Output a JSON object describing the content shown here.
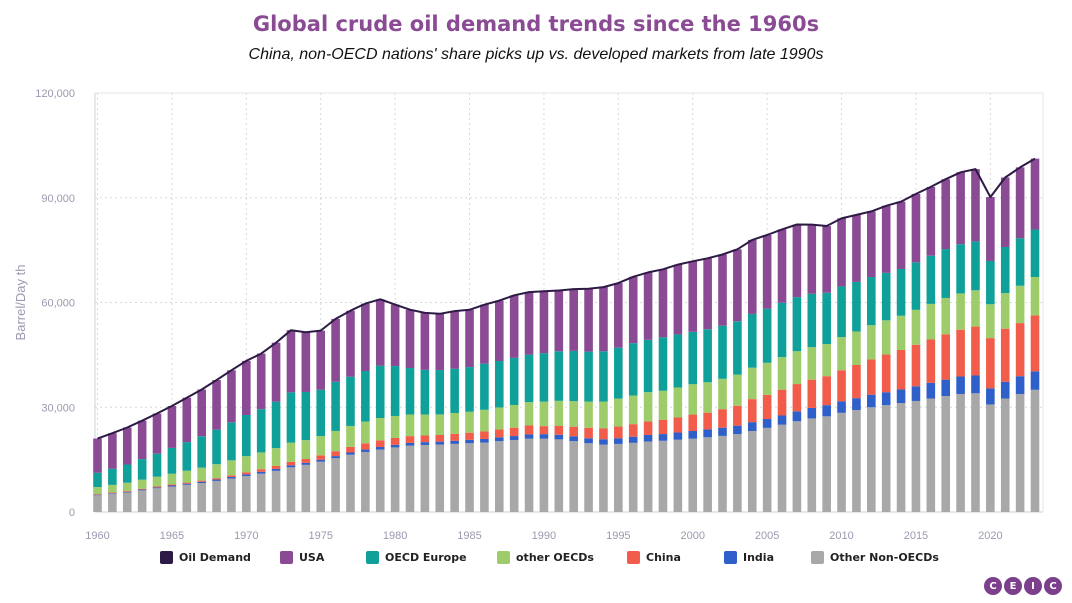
{
  "colors": {
    "oil_demand": "#2d1b45",
    "usa": "#8a4a94",
    "oecd_europe": "#10a09a",
    "other_oecds": "#9fcc6a",
    "china": "#f25c4b",
    "india": "#2f5fc9",
    "other_non_oecds": "#a8a8a8",
    "grid": "#d8d8d8",
    "axis_text": "#9a9ab0"
  },
  "logo": {
    "letters": [
      "C",
      "E",
      "I",
      "C"
    ],
    "color": "#7b3f8c"
  },
  "chart_data": {
    "type": "bar",
    "stacked": true,
    "title": "Global crude oil demand trends since the 1960s",
    "subtitle": "China, non-OECD nations' share picks up vs. developed markets from late 1990s",
    "ylabel": "Barrel/Day th",
    "ylim": [
      0,
      120000
    ],
    "y_ticks": [
      "0",
      "30,000",
      "60,000",
      "90,000",
      "120,000"
    ],
    "x_ticks": [
      "1960",
      "1965",
      "1970",
      "1975",
      "1980",
      "1985",
      "1990",
      "1995",
      "2000",
      "2005",
      "2010",
      "2015",
      "2020"
    ],
    "grid": true,
    "legend_position": "bottom",
    "x": [
      1960,
      1961,
      1962,
      1963,
      1964,
      1965,
      1966,
      1967,
      1968,
      1969,
      1970,
      1971,
      1972,
      1973,
      1974,
      1975,
      1976,
      1977,
      1978,
      1979,
      1980,
      1981,
      1982,
      1983,
      1984,
      1985,
      1986,
      1987,
      1988,
      1989,
      1990,
      1991,
      1992,
      1993,
      1994,
      1995,
      1996,
      1997,
      1998,
      1999,
      2000,
      2001,
      2002,
      2003,
      2004,
      2005,
      2006,
      2007,
      2008,
      2009,
      2010,
      2011,
      2012,
      2013,
      2014,
      2015,
      2016,
      2017,
      2018,
      2019,
      2020,
      2021,
      2022,
      2023
    ],
    "series": [
      {
        "name": "Other Non-OECDs",
        "values": [
          4800,
          5200,
          5600,
          6200,
          6800,
          7300,
          7800,
          8300,
          8900,
          9600,
          10300,
          11000,
          11800,
          12800,
          13500,
          14400,
          15400,
          16400,
          17200,
          17900,
          18500,
          19000,
          19200,
          19300,
          19500,
          19700,
          19900,
          20300,
          20600,
          21000,
          21000,
          20800,
          20300,
          19700,
          19300,
          19500,
          19800,
          20200,
          20400,
          20700,
          21000,
          21400,
          21800,
          22300,
          23200,
          24100,
          25000,
          26000,
          26800,
          27400,
          28400,
          29200,
          30000,
          30600,
          31200,
          31800,
          32500,
          33200,
          33800,
          34000,
          30800,
          32500,
          33800,
          35000
        ]
      },
      {
        "name": "India",
        "values": [
          160,
          180,
          200,
          230,
          260,
          290,
          320,
          360,
          400,
          440,
          480,
          510,
          540,
          570,
          580,
          590,
          610,
          640,
          680,
          720,
          750,
          780,
          810,
          850,
          900,
          960,
          1020,
          1090,
          1150,
          1220,
          1300,
          1330,
          1390,
          1430,
          1520,
          1620,
          1760,
          1860,
          1920,
          2060,
          2200,
          2250,
          2350,
          2430,
          2530,
          2530,
          2640,
          2840,
          3000,
          3200,
          3300,
          3400,
          3600,
          3700,
          3900,
          4200,
          4500,
          4700,
          5000,
          5100,
          4600,
          4800,
          5100,
          5300
        ]
      },
      {
        "name": "China",
        "values": [
          170,
          190,
          200,
          220,
          240,
          270,
          300,
          330,
          380,
          450,
          600,
          750,
          850,
          1000,
          1100,
          1250,
          1400,
          1600,
          1800,
          1900,
          1950,
          1950,
          1900,
          1900,
          1950,
          2050,
          2150,
          2250,
          2400,
          2550,
          2300,
          2500,
          2750,
          3000,
          3100,
          3350,
          3600,
          3850,
          4100,
          4300,
          4700,
          4800,
          5300,
          5700,
          6600,
          6900,
          7400,
          7800,
          8100,
          8300,
          8900,
          9500,
          10100,
          10800,
          11300,
          11900,
          12400,
          13000,
          13400,
          14000,
          14400,
          15200,
          15200,
          16000
        ]
      },
      {
        "name": "other OECDs",
        "values": [
          2000,
          2200,
          2400,
          2600,
          2800,
          3100,
          3400,
          3700,
          4000,
          4300,
          4600,
          4800,
          5100,
          5500,
          5400,
          5500,
          5800,
          6000,
          6200,
          6400,
          6300,
          6200,
          6000,
          5900,
          6000,
          6000,
          6200,
          6300,
          6500,
          6700,
          7000,
          7200,
          7300,
          7500,
          7700,
          8000,
          8200,
          8400,
          8300,
          8600,
          8700,
          8700,
          8700,
          8900,
          9000,
          9200,
          9300,
          9400,
          9300,
          9200,
          9500,
          9600,
          9800,
          9800,
          9800,
          10000,
          10200,
          10400,
          10400,
          10400,
          9700,
          10200,
          10700,
          11000
        ]
      },
      {
        "name": "OECD Europe",
        "values": [
          4100,
          4600,
          5200,
          5900,
          6600,
          7400,
          8200,
          9000,
          9900,
          10900,
          11800,
          12400,
          13300,
          14400,
          13800,
          13300,
          14100,
          14100,
          14500,
          15000,
          14300,
          13300,
          12800,
          12700,
          12700,
          12800,
          13200,
          13300,
          13500,
          13600,
          13900,
          14200,
          14400,
          14300,
          14400,
          14600,
          15000,
          15000,
          15300,
          15200,
          15000,
          15200,
          15200,
          15300,
          15400,
          15500,
          15600,
          15500,
          15300,
          14700,
          14500,
          14200,
          13800,
          13600,
          13400,
          13600,
          13800,
          14000,
          14100,
          14000,
          12400,
          13200,
          13600,
          13600
        ]
      },
      {
        "name": "USA",
        "values": [
          9800,
          10200,
          10600,
          11000,
          11500,
          12000,
          12700,
          13400,
          14200,
          14900,
          15500,
          15900,
          16900,
          17800,
          17100,
          16900,
          18000,
          18900,
          19300,
          19000,
          17600,
          16700,
          16300,
          16100,
          16500,
          16400,
          16900,
          17300,
          17900,
          17900,
          17700,
          17400,
          17700,
          18000,
          18400,
          18500,
          19000,
          19300,
          19500,
          20000,
          20200,
          20300,
          20400,
          20600,
          21200,
          21100,
          21000,
          20800,
          19800,
          19100,
          19500,
          19200,
          18800,
          19200,
          19300,
          19600,
          19700,
          20000,
          20600,
          20700,
          18300,
          19900,
          20300,
          20300
        ]
      }
    ],
    "line": {
      "name": "Oil Demand"
    }
  },
  "legend": [
    {
      "label": "Oil Demand",
      "color_key": "oil_demand"
    },
    {
      "label": "USA",
      "color_key": "usa"
    },
    {
      "label": "OECD Europe",
      "color_key": "oecd_europe"
    },
    {
      "label": "other OECDs",
      "color_key": "other_oecds"
    },
    {
      "label": "China",
      "color_key": "china"
    },
    {
      "label": "India",
      "color_key": "india"
    },
    {
      "label": "Other Non-OECDs",
      "color_key": "other_non_oecds"
    }
  ]
}
